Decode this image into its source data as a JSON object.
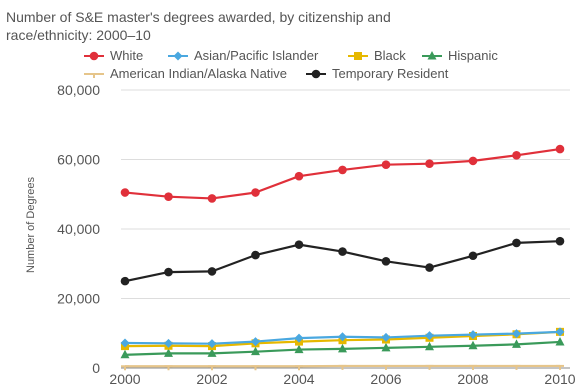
{
  "chart_data": {
    "type": "line",
    "title_lines": [
      "Number of S&E master's degrees awarded, by citizenship and",
      "race/ethnicity: 2000–10"
    ],
    "xlabel": "",
    "ylabel": "Number of Degrees",
    "x": [
      2000,
      2001,
      2002,
      2003,
      2004,
      2005,
      2006,
      2007,
      2008,
      2009,
      2010
    ],
    "x_tick_labels": [
      "2000",
      "2002",
      "2004",
      "2006",
      "2008",
      "2010"
    ],
    "y_tick_labels": [
      "0",
      "20,000",
      "40,000",
      "60,000",
      "80,000"
    ],
    "ylim": [
      0,
      80000
    ],
    "grid": true,
    "legend_position": "top",
    "series": [
      {
        "name": "White",
        "color": "#e0303a",
        "marker": "circle",
        "values": [
          50500,
          49300,
          48800,
          50500,
          55200,
          57000,
          58500,
          58800,
          59600,
          61200,
          63000
        ]
      },
      {
        "name": "Asian/Pacific Islander",
        "color": "#4aa8e0",
        "marker": "diamond",
        "values": [
          7200,
          7100,
          7000,
          7600,
          8600,
          9000,
          8800,
          9300,
          9600,
          9900,
          10400
        ]
      },
      {
        "name": "Black",
        "color": "#e6b800",
        "marker": "square",
        "values": [
          6300,
          6400,
          6300,
          7100,
          7600,
          8000,
          8200,
          8700,
          9200,
          9700,
          10400
        ]
      },
      {
        "name": "Hispanic",
        "color": "#3a9a5a",
        "marker": "triangle",
        "values": [
          3800,
          4200,
          4200,
          4700,
          5300,
          5500,
          5800,
          6100,
          6400,
          6800,
          7500
        ]
      },
      {
        "name": "American Indian/Alaska Native",
        "color": "#e6c58a",
        "marker": "tick",
        "values": [
          500,
          500,
          500,
          500,
          500,
          600,
          600,
          600,
          600,
          600,
          600
        ]
      },
      {
        "name": "Temporary Resident",
        "color": "#222222",
        "marker": "circle",
        "values": [
          25000,
          27600,
          27800,
          32500,
          35500,
          33500,
          30700,
          28900,
          32300,
          36000,
          36500
        ]
      }
    ]
  }
}
